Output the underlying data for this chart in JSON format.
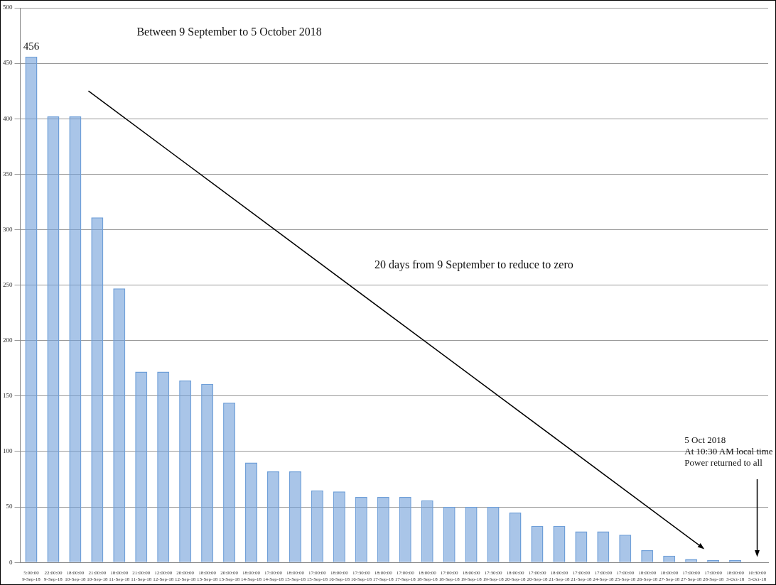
{
  "chart_data": {
    "type": "bar",
    "categories": [
      "5:00:00\n9-Sep-18",
      "22:00:00\n9-Sep-18",
      "18:00:00\n10-Sep-18",
      "21:00:00\n10-Sep-18",
      "18:00:00\n11-Sep-18",
      "21:00:00\n11-Sep-18",
      "12:00:00\n12-Sep-18",
      "20:00:00\n12-Sep-18",
      "18:00:00\n13-Sep-18",
      "20:00:00\n13-Sep-18",
      "18:00:00\n14-Sep-18",
      "17:00:00\n14-Sep-18",
      "18:00:00\n15-Sep-18",
      "17:00:00\n15-Sep-18",
      "18:00:00\n16-Sep-18",
      "17:30:00\n16-Sep-18",
      "18:00:00\n17-Sep-18",
      "17:00:00\n17-Sep-18",
      "18:00:00\n18-Sep-18",
      "17:00:00\n18-Sep-18",
      "18:00:00\n19-Sep-18",
      "17:30:00\n19-Sep-18",
      "18:00:00\n20-Sep-18",
      "17:00:00\n20-Sep-18",
      "18:00:00\n21-Sep-18",
      "17:00:00\n21-Sep-18",
      "17:00:00\n24-Sep-18",
      "17:00:00\n25-Sep-18",
      "18:00:00\n26-Sep-18",
      "18:00:00\n27-Sep-18",
      "17:00:00\n27-Sep-18",
      "17:00:00\n28-Sep-18",
      "18:00:00\n3-Oct-18",
      "10:30:00\n5-Oct-18"
    ],
    "values": [
      456,
      402,
      402,
      311,
      247,
      172,
      172,
      164,
      161,
      144,
      90,
      82,
      82,
      65,
      64,
      59,
      59,
      59,
      56,
      50,
      50,
      50,
      45,
      33,
      33,
      28,
      28,
      25,
      11,
      6,
      3,
      2,
      2,
      0
    ],
    "value_labels": [
      "456",
      null,
      null,
      null,
      null,
      null,
      null,
      null,
      null,
      null,
      null,
      null,
      null,
      null,
      null,
      null,
      null,
      null,
      null,
      null,
      null,
      null,
      null,
      null,
      null,
      null,
      null,
      null,
      null,
      null,
      null,
      null,
      null,
      null
    ],
    "color": "#6f9fd8",
    "ylim": [
      0,
      500
    ],
    "yticks": [
      0,
      50,
      100,
      150,
      200,
      250,
      300,
      350,
      400,
      450,
      500
    ],
    "grid": "y",
    "legend": false,
    "annotations": [
      "Between 9 September to 5 October 2018",
      "20 days from 9 September to reduce to zero",
      "5 Oct 2018\nAt 10:30 AM local time\nPower returned to all"
    ]
  }
}
